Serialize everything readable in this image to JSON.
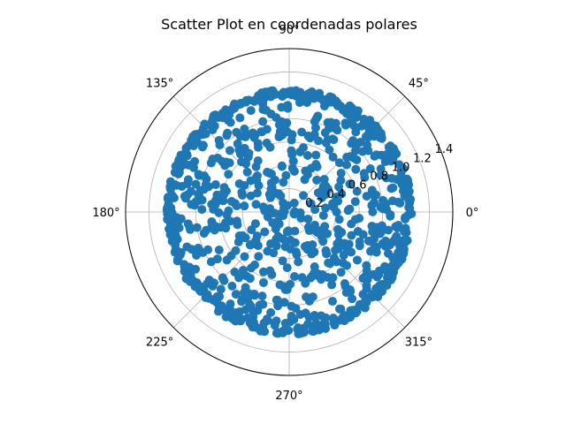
{
  "chart_data": {
    "type": "scatter",
    "projection": "polar",
    "title": "Scatter Plot en coordenadas polares",
    "theta_tick_labels": [
      "0°",
      "45°",
      "90°",
      "135°",
      "180°",
      "225°",
      "270°",
      "315°"
    ],
    "theta_tick_degrees": [
      0,
      45,
      90,
      135,
      180,
      225,
      270,
      315
    ],
    "r_tick_labels": [
      "0.2",
      "0.4",
      "0.6",
      "0.8",
      "1.0",
      "1.2",
      "1.4"
    ],
    "r_ticks": [
      0.2,
      0.4,
      0.6,
      0.8,
      1.0,
      1.2,
      1.4
    ],
    "rlim": [
      0,
      1.4
    ],
    "r_label_angle_deg": 22.5,
    "grid": true,
    "marker_color": "#1f77b4",
    "series": [
      {
        "point_count": 1000,
        "theta_range_deg": [
          0,
          360
        ],
        "r_range": [
          0,
          1.05
        ]
      }
    ]
  }
}
